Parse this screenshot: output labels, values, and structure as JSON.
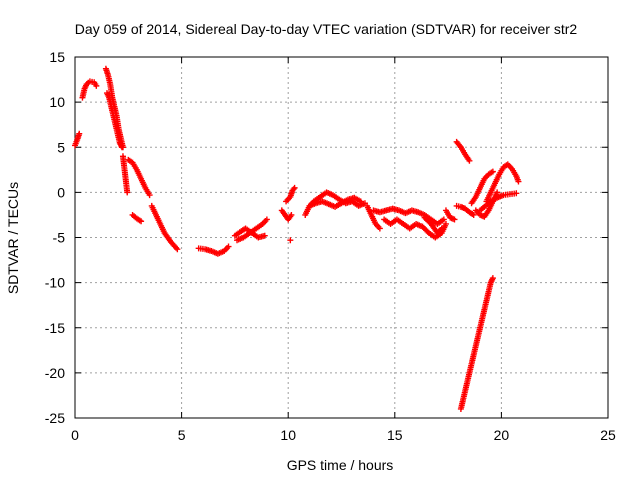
{
  "chart_data": {
    "type": "scatter",
    "title": "Day 059 of 2014, Sidereal Day-to-day VTEC variation (SDTVAR) for receiver str2",
    "xlabel": "GPS time / hours",
    "ylabel": "SDTVAR / TECUs",
    "xlim": [
      0,
      25
    ],
    "ylim": [
      -25,
      15
    ],
    "xticks": [
      0,
      5,
      10,
      15,
      20,
      25
    ],
    "yticks": [
      15,
      10,
      5,
      0,
      -5,
      -10,
      -15,
      -20,
      -25
    ],
    "grid": true,
    "marker": "plus",
    "color": "#ff0000",
    "series": [
      {
        "segments": [
          [
            [
              0.0,
              5.2
            ],
            [
              0.1,
              5.8
            ],
            [
              0.2,
              6.5
            ]
          ],
          [
            [
              0.35,
              10.5
            ],
            [
              0.45,
              11.5
            ],
            [
              0.55,
              12.0
            ],
            [
              0.7,
              12.3
            ],
            [
              0.9,
              12.2
            ],
            [
              1.0,
              11.8
            ]
          ],
          [
            [
              1.45,
              13.7
            ],
            [
              1.55,
              13.0
            ],
            [
              1.65,
              12.0
            ],
            [
              1.75,
              10.5
            ],
            [
              1.85,
              9.5
            ],
            [
              1.95,
              8.5
            ],
            [
              2.05,
              7.0
            ],
            [
              2.15,
              6.0
            ],
            [
              2.25,
              5.0
            ]
          ],
          [
            [
              1.5,
              11.0
            ],
            [
              1.6,
              10.5
            ],
            [
              1.7,
              9.5
            ],
            [
              1.8,
              8.5
            ],
            [
              1.9,
              7.5
            ],
            [
              2.0,
              6.5
            ],
            [
              2.1,
              5.5
            ],
            [
              2.2,
              5.0
            ]
          ],
          [
            [
              2.25,
              4.0
            ],
            [
              2.3,
              3.0
            ],
            [
              2.35,
              2.0
            ],
            [
              2.4,
              1.0
            ],
            [
              2.45,
              0.0
            ]
          ],
          [
            [
              2.5,
              3.6
            ],
            [
              2.7,
              3.3
            ],
            [
              2.9,
              2.5
            ],
            [
              3.1,
              1.5
            ],
            [
              3.3,
              0.5
            ],
            [
              3.5,
              -0.3
            ]
          ],
          [
            [
              2.7,
              -2.5
            ],
            [
              2.9,
              -2.9
            ],
            [
              3.1,
              -3.2
            ]
          ],
          [
            [
              3.6,
              -1.5
            ],
            [
              3.8,
              -2.5
            ],
            [
              4.0,
              -3.5
            ],
            [
              4.2,
              -4.5
            ],
            [
              4.5,
              -5.5
            ],
            [
              4.8,
              -6.3
            ]
          ],
          [
            [
              5.8,
              -6.2
            ],
            [
              6.1,
              -6.3
            ],
            [
              6.4,
              -6.5
            ],
            [
              6.7,
              -6.8
            ],
            [
              7.0,
              -6.5
            ],
            [
              7.2,
              -6.0
            ]
          ],
          [
            [
              7.5,
              -4.8
            ],
            [
              7.8,
              -4.3
            ],
            [
              8.0,
              -4.0
            ],
            [
              8.3,
              -4.5
            ],
            [
              8.6,
              -5.0
            ],
            [
              8.9,
              -4.8
            ]
          ],
          [
            [
              7.6,
              -5.3
            ],
            [
              7.9,
              -5.0
            ],
            [
              8.2,
              -4.5
            ],
            [
              8.5,
              -4.0
            ],
            [
              8.8,
              -3.5
            ],
            [
              9.0,
              -3.0
            ]
          ],
          [
            [
              9.9,
              -1.0
            ],
            [
              10.1,
              -0.5
            ],
            [
              10.2,
              0.2
            ],
            [
              10.3,
              0.5
            ]
          ],
          [
            [
              9.7,
              -2.0
            ],
            [
              9.85,
              -2.5
            ],
            [
              10.0,
              -3.0
            ],
            [
              10.15,
              -2.5
            ]
          ],
          [
            [
              10.1,
              -5.3
            ]
          ],
          [
            [
              10.8,
              -2.5
            ],
            [
              11.0,
              -1.5
            ],
            [
              11.2,
              -1.0
            ],
            [
              11.5,
              -0.5
            ],
            [
              11.8,
              0.0
            ],
            [
              12.1,
              -0.3
            ],
            [
              12.4,
              -0.8
            ],
            [
              12.7,
              -1.2
            ],
            [
              13.0,
              -1.0
            ],
            [
              13.3,
              -1.5
            ],
            [
              13.6,
              -1.2
            ]
          ],
          [
            [
              11.0,
              -1.5
            ],
            [
              11.3,
              -1.2
            ],
            [
              11.6,
              -1.0
            ],
            [
              11.9,
              -1.3
            ],
            [
              12.2,
              -1.6
            ],
            [
              12.5,
              -1.2
            ],
            [
              12.8,
              -0.8
            ],
            [
              13.1,
              -0.6
            ],
            [
              13.4,
              -1.0
            ]
          ],
          [
            [
              13.7,
              -1.5
            ],
            [
              13.9,
              -2.5
            ],
            [
              14.1,
              -3.5
            ],
            [
              14.3,
              -4.0
            ]
          ],
          [
            [
              14.0,
              -2.0
            ],
            [
              14.3,
              -2.2
            ],
            [
              14.6,
              -2.0
            ],
            [
              14.9,
              -1.8
            ],
            [
              15.2,
              -2.0
            ],
            [
              15.5,
              -2.3
            ],
            [
              15.8,
              -2.0
            ],
            [
              16.1,
              -2.2
            ],
            [
              16.4,
              -2.5
            ],
            [
              16.7,
              -3.0
            ],
            [
              17.0,
              -3.5
            ],
            [
              17.3,
              -3.0
            ]
          ],
          [
            [
              14.5,
              -3.0
            ],
            [
              14.8,
              -3.5
            ],
            [
              15.1,
              -3.0
            ],
            [
              15.4,
              -3.5
            ],
            [
              15.7,
              -4.0
            ],
            [
              16.0,
              -3.5
            ],
            [
              16.3,
              -3.8
            ],
            [
              16.6,
              -4.5
            ],
            [
              16.9,
              -5.0
            ],
            [
              17.2,
              -4.5
            ],
            [
              17.4,
              -3.5
            ]
          ],
          [
            [
              16.4,
              -2.8
            ],
            [
              16.7,
              -3.5
            ],
            [
              17.0,
              -4.5
            ],
            [
              17.2,
              -4.0
            ]
          ],
          [
            [
              17.4,
              -2.0
            ],
            [
              17.6,
              -2.8
            ],
            [
              17.8,
              -3.0
            ]
          ],
          [
            [
              17.9,
              5.6
            ],
            [
              18.1,
              5.0
            ],
            [
              18.3,
              4.2
            ],
            [
              18.5,
              3.5
            ]
          ],
          [
            [
              17.9,
              -1.5
            ],
            [
              18.1,
              -1.6
            ],
            [
              18.3,
              -1.8
            ],
            [
              18.5,
              -2.2
            ],
            [
              18.7,
              -2.5
            ]
          ],
          [
            [
              18.6,
              -1.2
            ],
            [
              18.8,
              -0.5
            ],
            [
              19.0,
              0.5
            ],
            [
              19.2,
              1.5
            ],
            [
              19.4,
              2.0
            ],
            [
              19.6,
              2.3
            ]
          ],
          [
            [
              19.0,
              -2.0
            ],
            [
              19.2,
              -1.6
            ],
            [
              19.5,
              -1.0
            ],
            [
              19.8,
              -0.6
            ],
            [
              20.1,
              -0.3
            ],
            [
              20.4,
              -0.2
            ],
            [
              20.7,
              -0.1
            ]
          ],
          [
            [
              19.3,
              -1.0
            ],
            [
              19.5,
              0.0
            ],
            [
              19.7,
              1.0
            ],
            [
              19.9,
              2.0
            ],
            [
              20.1,
              2.8
            ],
            [
              20.3,
              3.1
            ],
            [
              20.5,
              2.6
            ],
            [
              20.7,
              1.8
            ],
            [
              20.8,
              1.2
            ]
          ],
          [
            [
              18.8,
              -2.0
            ],
            [
              19.0,
              -2.5
            ],
            [
              19.2,
              -2.7
            ],
            [
              19.4,
              -2.0
            ],
            [
              19.6,
              -1.0
            ],
            [
              19.8,
              0.0
            ]
          ],
          [
            [
              18.1,
              -24.0
            ],
            [
              18.2,
              -23.0
            ],
            [
              18.3,
              -22.0
            ],
            [
              18.4,
              -21.0
            ],
            [
              18.5,
              -20.0
            ],
            [
              18.6,
              -19.0
            ],
            [
              18.7,
              -18.0
            ],
            [
              18.8,
              -17.0
            ],
            [
              18.9,
              -16.0
            ],
            [
              19.0,
              -15.0
            ],
            [
              19.1,
              -14.0
            ],
            [
              19.2,
              -13.0
            ],
            [
              19.3,
              -12.0
            ],
            [
              19.4,
              -11.0
            ],
            [
              19.5,
              -10.0
            ],
            [
              19.6,
              -9.5
            ]
          ]
        ]
      }
    ]
  }
}
